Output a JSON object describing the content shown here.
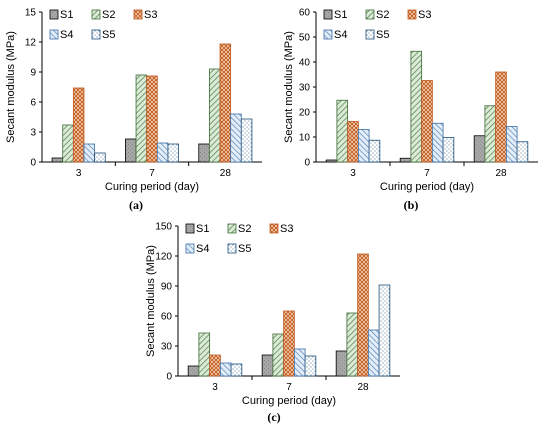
{
  "chart_data": [
    {
      "type": "bar",
      "panel_label": "(a)",
      "categories": [
        "3",
        "7",
        "28"
      ],
      "xlabel": "Curing period (day)",
      "ylabel": "Secant modulus (MPa)",
      "ylim": [
        0,
        15
      ],
      "yticks": [
        0,
        3,
        6,
        9,
        12,
        15
      ],
      "legend_position": "top-left",
      "series": [
        {
          "name": "S1",
          "values": [
            0.4,
            2.3,
            1.8
          ]
        },
        {
          "name": "S2",
          "values": [
            3.7,
            8.7,
            9.3
          ]
        },
        {
          "name": "S3",
          "values": [
            7.4,
            8.6,
            11.8
          ]
        },
        {
          "name": "S4",
          "values": [
            1.8,
            1.9,
            4.8
          ]
        },
        {
          "name": "S5",
          "values": [
            0.9,
            1.8,
            4.3
          ]
        }
      ]
    },
    {
      "type": "bar",
      "panel_label": "(b)",
      "categories": [
        "3",
        "7",
        "28"
      ],
      "xlabel": "Curing period (day)",
      "ylabel": "Secant modulus (MPa)",
      "ylim": [
        0,
        60
      ],
      "yticks": [
        0,
        10,
        20,
        30,
        40,
        50,
        60
      ],
      "legend_position": "top-left",
      "series": [
        {
          "name": "S1",
          "values": [
            0.8,
            1.5,
            10.5
          ]
        },
        {
          "name": "S2",
          "values": [
            24.7,
            44.3,
            22.5
          ]
        },
        {
          "name": "S3",
          "values": [
            16.2,
            32.6,
            36.0
          ]
        },
        {
          "name": "S4",
          "values": [
            13.0,
            15.5,
            14.2
          ]
        },
        {
          "name": "S5",
          "values": [
            8.7,
            9.8,
            8.1
          ]
        }
      ]
    },
    {
      "type": "bar",
      "panel_label": "(c)",
      "categories": [
        "3",
        "7",
        "28"
      ],
      "xlabel": "Curing period (day)",
      "ylabel": "Secant modulus (MPa)",
      "ylim": [
        0,
        150
      ],
      "yticks": [
        0,
        30,
        60,
        90,
        120,
        150
      ],
      "legend_position": "top-left",
      "series": [
        {
          "name": "S1",
          "values": [
            10,
            21,
            25
          ]
        },
        {
          "name": "S2",
          "values": [
            43,
            42,
            63
          ]
        },
        {
          "name": "S3",
          "values": [
            21,
            65,
            122
          ]
        },
        {
          "name": "S4",
          "values": [
            13,
            27,
            46
          ]
        },
        {
          "name": "S5",
          "values": [
            12,
            20,
            91
          ]
        }
      ]
    }
  ],
  "series_styles": {
    "S1": {
      "fill": "#a6a6a6",
      "pattern": "solid-gray",
      "stroke": "#000000"
    },
    "S2": {
      "fill": "#c7dfc3",
      "pattern": "diagonal-lines-up",
      "stroke": "#3d6b35"
    },
    "S3": {
      "fill": "#f2c8a2",
      "pattern": "cross-hatch",
      "stroke": "#c0561d"
    },
    "S4": {
      "fill": "#d6e6f5",
      "pattern": "diagonal-lines-down",
      "stroke": "#3b6fa8"
    },
    "S5": {
      "fill": "#ffffff",
      "pattern": "dots",
      "stroke": "#1f4e79"
    }
  }
}
